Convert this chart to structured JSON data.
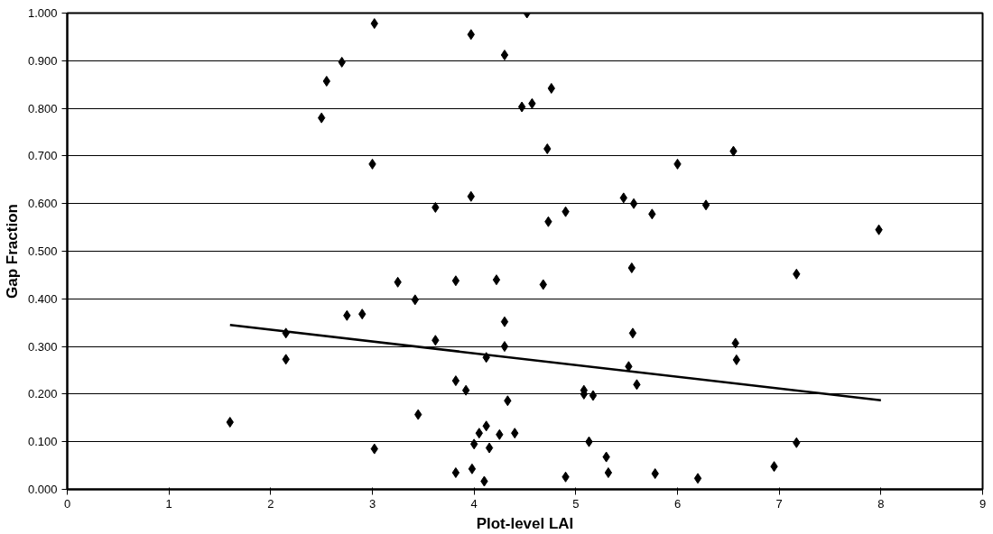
{
  "chart_data": {
    "type": "scatter",
    "xlabel": "Plot-level LAI",
    "ylabel": "Gap Fraction",
    "xlim": [
      0,
      9
    ],
    "xticks": [
      0,
      1,
      2,
      3,
      4,
      5,
      6,
      7,
      8,
      9
    ],
    "ylim": [
      0,
      1
    ],
    "yticks": [
      {
        "value": 0,
        "label": "0.000"
      },
      {
        "value": 0.1,
        "label": "0.100"
      },
      {
        "value": 0.2,
        "label": "0.200"
      },
      {
        "value": 0.3,
        "label": "0.300"
      },
      {
        "value": 0.4,
        "label": "0.400"
      },
      {
        "value": 0.5,
        "label": "0.500"
      },
      {
        "value": 0.6,
        "label": "0.600"
      },
      {
        "value": 0.7,
        "label": "0.700"
      },
      {
        "value": 0.8,
        "label": "0.800"
      },
      {
        "value": 0.9,
        "label": "0.900"
      },
      {
        "value": 1,
        "label": "1.000"
      }
    ],
    "grid": "y",
    "series": [
      {
        "marker": "diamond",
        "color": "#000000",
        "x": [
          1.6,
          2.15,
          2.15,
          2.5,
          2.55,
          2.7,
          2.75,
          2.9,
          3.0,
          3.02,
          3.02,
          3.25,
          3.42,
          3.45,
          3.62,
          3.62,
          3.82,
          3.82,
          3.82,
          3.92,
          3.97,
          3.97,
          3.98,
          4.0,
          4.05,
          4.1,
          4.12,
          4.12,
          4.15,
          4.22,
          4.25,
          4.3,
          4.3,
          4.3,
          4.33,
          4.4,
          4.47,
          4.52,
          4.57,
          4.68,
          4.72,
          4.73,
          4.76,
          4.9,
          4.9,
          5.08,
          5.08,
          5.13,
          5.17,
          5.3,
          5.32,
          5.47,
          5.52,
          5.55,
          5.56,
          5.57,
          5.6,
          5.75,
          5.78,
          6.0,
          6.2,
          6.28,
          6.55,
          6.57,
          6.58,
          6.95,
          7.17,
          7.17,
          7.98
        ],
        "values": [
          0.141,
          0.328,
          0.273,
          0.78,
          0.857,
          0.897,
          0.365,
          0.368,
          0.683,
          0.978,
          0.085,
          0.435,
          0.398,
          0.157,
          0.592,
          0.313,
          0.438,
          0.228,
          0.035,
          0.208,
          0.955,
          0.615,
          0.043,
          0.095,
          0.118,
          0.017,
          0.133,
          0.277,
          0.087,
          0.44,
          0.115,
          0.912,
          0.352,
          0.3,
          0.186,
          0.118,
          0.803,
          1.0,
          0.81,
          0.43,
          0.715,
          0.562,
          0.842,
          0.583,
          0.026,
          0.208,
          0.2,
          0.1,
          0.197,
          0.068,
          0.035,
          0.612,
          0.258,
          0.465,
          0.328,
          0.6,
          0.22,
          0.578,
          0.033,
          0.683,
          0.023,
          0.597,
          0.71,
          0.307,
          0.272,
          0.048,
          0.452,
          0.098,
          0.545
        ]
      },
      {
        "type": "line",
        "line_style": "solid",
        "color": "#000000",
        "x": [
          1.6,
          8.0
        ],
        "values": [
          0.345,
          0.187
        ]
      }
    ]
  }
}
